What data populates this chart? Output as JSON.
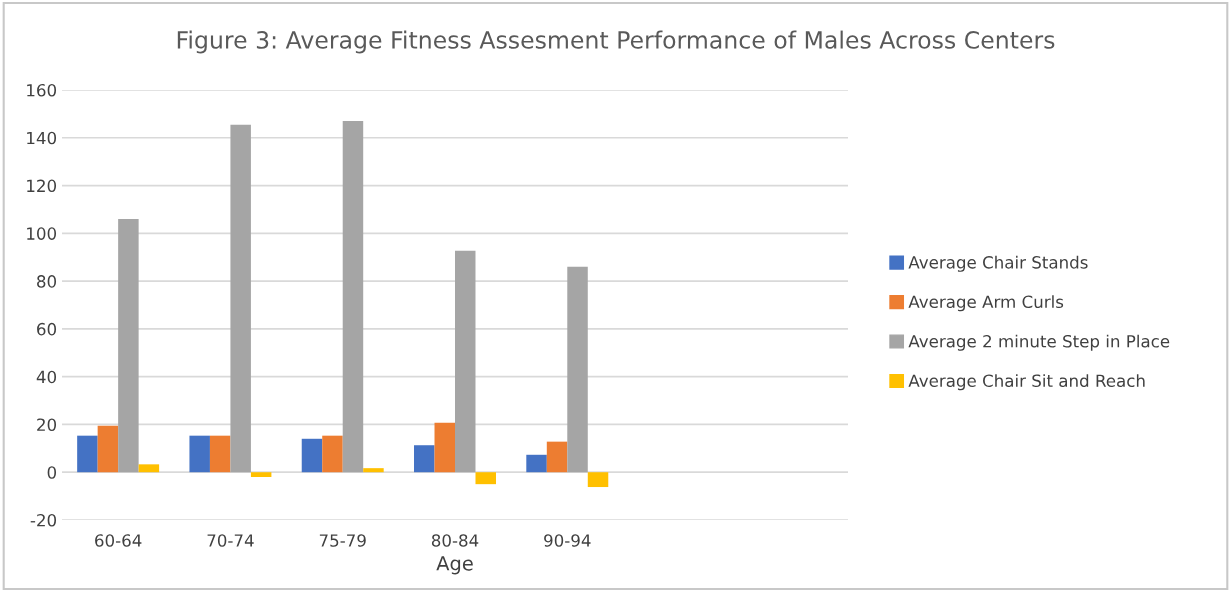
{
  "chart_data": {
    "type": "bar",
    "title": "Figure 3: Average Fitness Assesment Performance of Males Across Centers",
    "xlabel": "Age",
    "categories": [
      "60-64",
      "70-74",
      "75-79",
      "80-84",
      "90-94",
      null,
      null
    ],
    "series": [
      {
        "name": "Average Chair Stands",
        "color": "#4472c4",
        "values": [
          15.3,
          15.3,
          14,
          11.3,
          7.3,
          null,
          null
        ]
      },
      {
        "name": "Average Arm Curls",
        "color": "#ed7d31",
        "values": [
          19.5,
          15.3,
          15.3,
          20.7,
          12.8,
          null,
          null
        ]
      },
      {
        "name": "Average 2 minute Step in Place",
        "color": "#a5a5a5",
        "values": [
          106,
          145.5,
          147,
          92.7,
          86,
          null,
          null
        ]
      },
      {
        "name": "Average Chair Sit and Reach",
        "color": "#ffc000",
        "values": [
          3.3,
          -2,
          1.7,
          -5,
          -6.2,
          null,
          null
        ]
      }
    ],
    "ylim": [
      -20,
      160
    ],
    "yticks": [
      -20,
      0,
      20,
      40,
      60,
      80,
      100,
      120,
      140,
      160
    ],
    "grid": "y",
    "legend": "right"
  }
}
